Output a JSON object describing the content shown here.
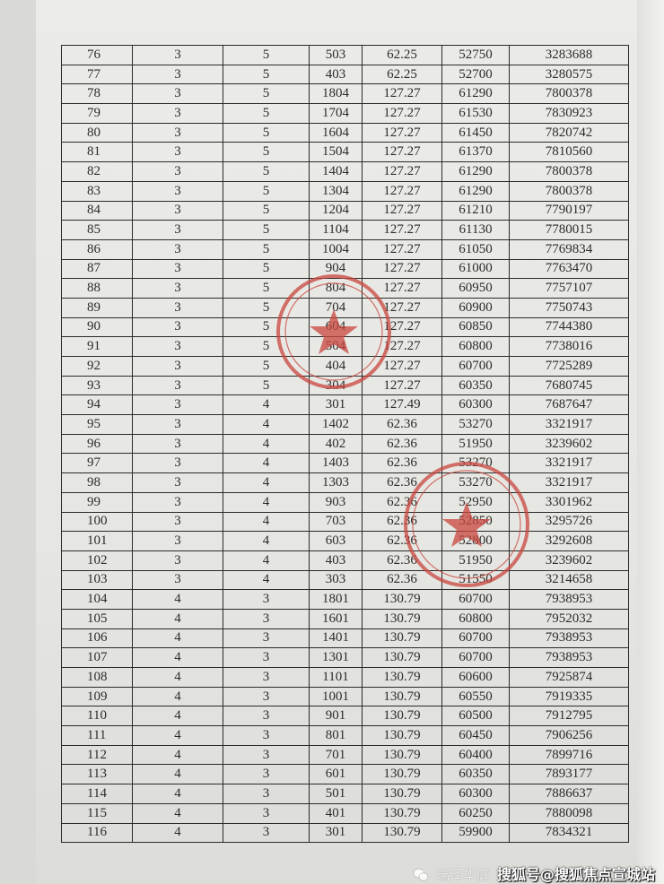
{
  "table": {
    "rows": [
      [
        "76",
        "3",
        "5",
        "503",
        "62.25",
        "52750",
        "3283688"
      ],
      [
        "77",
        "3",
        "5",
        "403",
        "62.25",
        "52700",
        "3280575"
      ],
      [
        "78",
        "3",
        "5",
        "1804",
        "127.27",
        "61290",
        "7800378"
      ],
      [
        "79",
        "3",
        "5",
        "1704",
        "127.27",
        "61530",
        "7830923"
      ],
      [
        "80",
        "3",
        "5",
        "1604",
        "127.27",
        "61450",
        "7820742"
      ],
      [
        "81",
        "3",
        "5",
        "1504",
        "127.27",
        "61370",
        "7810560"
      ],
      [
        "82",
        "3",
        "5",
        "1404",
        "127.27",
        "61290",
        "7800378"
      ],
      [
        "83",
        "3",
        "5",
        "1304",
        "127.27",
        "61290",
        "7800378"
      ],
      [
        "84",
        "3",
        "5",
        "1204",
        "127.27",
        "61210",
        "7790197"
      ],
      [
        "85",
        "3",
        "5",
        "1104",
        "127.27",
        "61130",
        "7780015"
      ],
      [
        "86",
        "3",
        "5",
        "1004",
        "127.27",
        "61050",
        "7769834"
      ],
      [
        "87",
        "3",
        "5",
        "904",
        "127.27",
        "61000",
        "7763470"
      ],
      [
        "88",
        "3",
        "5",
        "804",
        "127.27",
        "60950",
        "7757107"
      ],
      [
        "89",
        "3",
        "5",
        "704",
        "127.27",
        "60900",
        "7750743"
      ],
      [
        "90",
        "3",
        "5",
        "604",
        "127.27",
        "60850",
        "7744380"
      ],
      [
        "91",
        "3",
        "5",
        "504",
        "127.27",
        "60800",
        "7738016"
      ],
      [
        "92",
        "3",
        "5",
        "404",
        "127.27",
        "60700",
        "7725289"
      ],
      [
        "93",
        "3",
        "5",
        "304",
        "127.27",
        "60350",
        "7680745"
      ],
      [
        "94",
        "3",
        "4",
        "301",
        "127.49",
        "60300",
        "7687647"
      ],
      [
        "95",
        "3",
        "4",
        "1402",
        "62.36",
        "53270",
        "3321917"
      ],
      [
        "96",
        "3",
        "4",
        "402",
        "62.36",
        "51950",
        "3239602"
      ],
      [
        "97",
        "3",
        "4",
        "1403",
        "62.36",
        "53270",
        "3321917"
      ],
      [
        "98",
        "3",
        "4",
        "1303",
        "62.36",
        "53270",
        "3321917"
      ],
      [
        "99",
        "3",
        "4",
        "903",
        "62.36",
        "52950",
        "3301962"
      ],
      [
        "100",
        "3",
        "4",
        "703",
        "62.36",
        "52850",
        "3295726"
      ],
      [
        "101",
        "3",
        "4",
        "603",
        "62.36",
        "52800",
        "3292608"
      ],
      [
        "102",
        "3",
        "4",
        "403",
        "62.36",
        "51950",
        "3239602"
      ],
      [
        "103",
        "3",
        "4",
        "303",
        "62.36",
        "51550",
        "3214658"
      ],
      [
        "104",
        "4",
        "3",
        "1801",
        "130.79",
        "60700",
        "7938953"
      ],
      [
        "105",
        "4",
        "3",
        "1601",
        "130.79",
        "60800",
        "7952032"
      ],
      [
        "106",
        "4",
        "3",
        "1401",
        "130.79",
        "60700",
        "7938953"
      ],
      [
        "107",
        "4",
        "3",
        "1301",
        "130.79",
        "60700",
        "7938953"
      ],
      [
        "108",
        "4",
        "3",
        "1101",
        "130.79",
        "60600",
        "7925874"
      ],
      [
        "109",
        "4",
        "3",
        "1001",
        "130.79",
        "60550",
        "7919335"
      ],
      [
        "110",
        "4",
        "3",
        "901",
        "130.79",
        "60500",
        "7912795"
      ],
      [
        "111",
        "4",
        "3",
        "801",
        "130.79",
        "60450",
        "7906256"
      ],
      [
        "112",
        "4",
        "3",
        "701",
        "130.79",
        "60400",
        "7899716"
      ],
      [
        "113",
        "4",
        "3",
        "601",
        "130.79",
        "60350",
        "7893177"
      ],
      [
        "114",
        "4",
        "3",
        "501",
        "130.79",
        "60300",
        "7886637"
      ],
      [
        "115",
        "4",
        "3",
        "401",
        "130.79",
        "60250",
        "7880098"
      ],
      [
        "116",
        "4",
        "3",
        "301",
        "130.79",
        "59900",
        "7834321"
      ]
    ]
  },
  "stamp_color": "#c9463e",
  "watermark": {
    "account": "瑞泽华庭",
    "source": "搜狐号@搜狐焦点宣城站",
    "icon": "wechat-icon"
  }
}
